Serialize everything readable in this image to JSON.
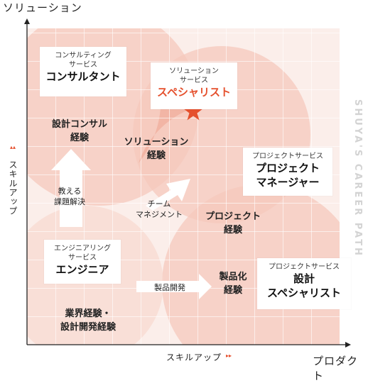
{
  "axes": {
    "y_title": "ソリューション",
    "x_title": "プロダクト",
    "x_skill_up": "スキルアップ",
    "y_skill_up": "スキルアップ",
    "x_arrow_glyph": "▸▸",
    "y_arrow_glyph": "▴▴"
  },
  "brand": "SHUYA'S CAREER PATH",
  "boxes": {
    "consulting": {
      "small": "コンサルティング",
      "small2": "サービス",
      "big": "コンサルタント"
    },
    "specialist": {
      "small": "ソリューション",
      "small2": "サービス",
      "big": "スペシャリスト"
    },
    "pm": {
      "small": "プロジェクトサービス",
      "big": "プロジェクト",
      "big2": "マネージャー"
    },
    "engineer": {
      "small": "エンジニアリング",
      "small2": "サービス",
      "big": "エンジニア"
    },
    "design_specialist": {
      "small": "プロジェクトサービス",
      "big": "設計",
      "big2": "スペシャリスト"
    }
  },
  "labels": {
    "design_consul": [
      "設計コンサル",
      "経験"
    ],
    "solution_exp": [
      "ソリューション",
      "経験"
    ],
    "project_exp": [
      "プロジェクト",
      "経験"
    ],
    "product_exp": [
      "製品化",
      "経験"
    ],
    "industry_exp": [
      "業界経験・",
      "設計開発経験"
    ],
    "teach": [
      "教える",
      "課題解決"
    ],
    "team_mgmt": [
      "チーム",
      "マネジメント"
    ],
    "product_dev": "製品開発"
  },
  "colors": {
    "accent": "#e5502d",
    "circle_fill": "#f3b9ab",
    "grid": "#ffffff",
    "axis": "#222222"
  }
}
